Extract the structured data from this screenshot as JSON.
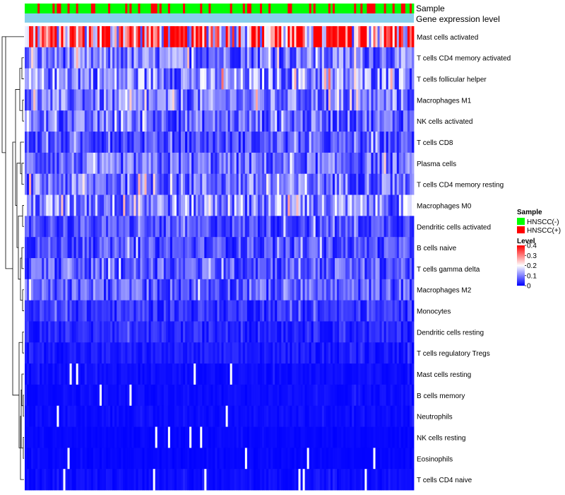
{
  "chart_data": {
    "type": "heatmap",
    "title": "",
    "annotation_rows": [
      "Sample",
      "Gene expression level"
    ],
    "rows": [
      "Mast cells activated",
      "T cells CD4 memory activated",
      "T cells follicular helper",
      "Macrophages M1",
      "NK cells activated",
      "T cells CD8",
      "Plasma cells",
      "T cells CD4 memory resting",
      "Macrophages M0",
      "Dendritic cells activated",
      "B cells naive",
      "T cells gamma delta",
      "Macrophages M2",
      "Monocytes",
      "Dendritic cells resting",
      "T cells regulatory  Tregs",
      "Mast cells resting",
      "B cells memory",
      "Neutrophils",
      "NK cells resting",
      "Eosinophils",
      "T cells CD4 naive"
    ],
    "row_levels": [
      0.28,
      0.09,
      0.11,
      0.09,
      0.08,
      0.06,
      0.08,
      0.09,
      0.11,
      0.06,
      0.06,
      0.07,
      0.07,
      0.04,
      0.03,
      0.02,
      0.01,
      0.01,
      0.01,
      0.005,
      0.005,
      0.01
    ],
    "num_samples": 182,
    "gene_expression_color": "#87ceeb",
    "sample_legend": {
      "title": "Sample",
      "entries": [
        {
          "label": "HNSCC(-)",
          "color": "#00ff00"
        },
        {
          "label": "HNSCC(+)",
          "color": "#ff0000"
        }
      ]
    },
    "level_legend": {
      "title": "Level",
      "ticks": [
        "0.4",
        "0.3",
        "0.2",
        "0.1",
        "0"
      ],
      "tick_values": [
        0.4,
        0.3,
        0.2,
        0.1,
        0
      ],
      "range": [
        0,
        0.4
      ],
      "colors": [
        "#0000ff",
        "#ffffff",
        "#ff0000"
      ]
    }
  }
}
